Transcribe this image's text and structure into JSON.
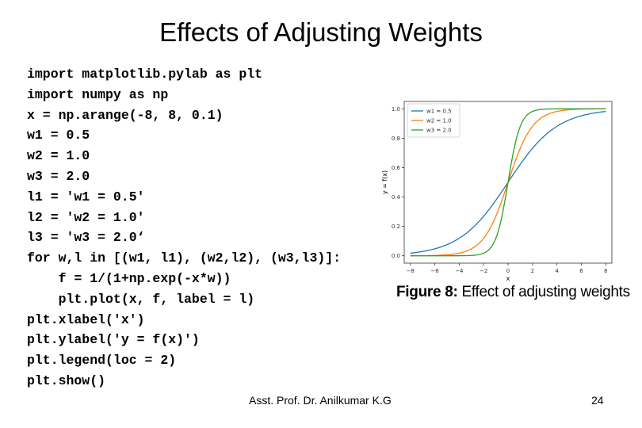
{
  "slide": {
    "title": "Effects of Adjusting Weights",
    "code_lines": [
      "import matplotlib.pylab as plt",
      "import numpy as np",
      "x = np.arange(-8, 8, 0.1)",
      "w1 = 0.5",
      "w2 = 1.0",
      "w3 = 2.0",
      "l1 = 'w1 = 0.5'",
      "l2 = 'w2 = 1.0'",
      "l3 = 'w3 = 2.0‘",
      "for w,l in [(w1, l1), (w2,l2), (w3,l3)]:",
      "    f = 1/(1+np.exp(-x*w))",
      "    plt.plot(x, f, label = l)",
      "plt.xlabel('x')",
      "plt.ylabel('y = f(x)')",
      "plt.legend(loc = 2)",
      "plt.show()"
    ],
    "caption_label": "Figure 8:",
    "caption_text": "Effect of adjusting weights",
    "footer": "Asst. Prof. Dr. Anilkumar K.G",
    "page_number": "24"
  },
  "chart_data": {
    "type": "line",
    "xlabel": "x",
    "ylabel": "y = f(x)",
    "xlim": [
      -8.5,
      8.5
    ],
    "ylim": [
      -0.05,
      1.05
    ],
    "xticks": [
      -8,
      -6,
      -4,
      -2,
      0,
      2,
      4,
      6,
      8
    ],
    "xtick_labels": [
      "−8",
      "−6",
      "−4",
      "−2",
      "0",
      "2",
      "4",
      "6",
      "8"
    ],
    "yticks": [
      0.0,
      0.2,
      0.4,
      0.6,
      0.8,
      1.0
    ],
    "ytick_labels": [
      "0.0",
      "0.2",
      "0.4",
      "0.6",
      "0.8",
      "1.0"
    ],
    "legend_position": "top-left",
    "series": [
      {
        "name": "w1 = 0.5",
        "weight": 0.5,
        "color": "#1f77b4",
        "x": [
          -8,
          -6,
          -4,
          -2,
          -1,
          0,
          1,
          2,
          4,
          6,
          8
        ],
        "values": [
          0.018,
          0.047,
          0.119,
          0.269,
          0.378,
          0.5,
          0.622,
          0.731,
          0.881,
          0.953,
          0.982
        ]
      },
      {
        "name": "w2 = 1.0",
        "weight": 1.0,
        "color": "#ff7f0e",
        "x": [
          -8,
          -6,
          -4,
          -2,
          -1,
          0,
          1,
          2,
          4,
          6,
          8
        ],
        "values": [
          0.0003,
          0.0025,
          0.018,
          0.119,
          0.269,
          0.5,
          0.731,
          0.881,
          0.982,
          0.9975,
          0.9997
        ]
      },
      {
        "name": "w3 = 2.0",
        "weight": 2.0,
        "color": "#2ca02c",
        "x": [
          -8,
          -6,
          -4,
          -2,
          -1,
          0,
          1,
          2,
          4,
          6,
          8
        ],
        "values": [
          0.0,
          0.0,
          0.0003,
          0.018,
          0.119,
          0.5,
          0.881,
          0.982,
          0.9997,
          1.0,
          1.0
        ]
      }
    ]
  }
}
